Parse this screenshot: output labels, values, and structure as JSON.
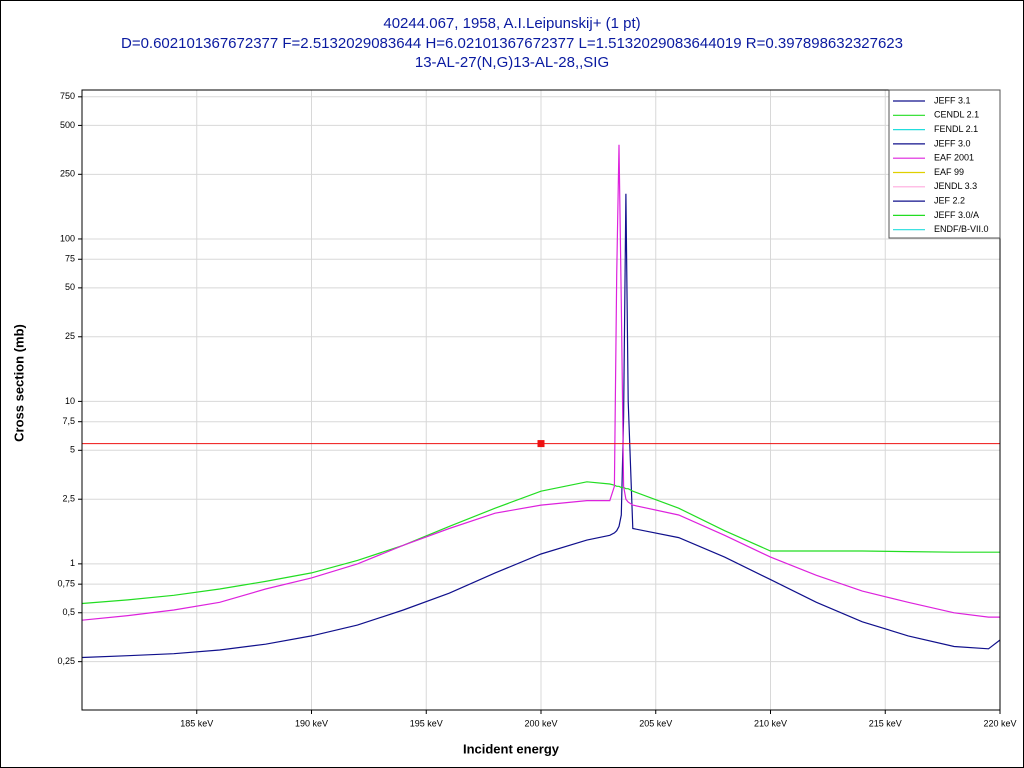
{
  "chart_data": {
    "type": "line",
    "title": [
      "40244.067, 1958, A.I.Leipunskij+ (1 pt)",
      "D=0.602101367672377 F=2.5132029083644 H=6.02101367672377 L=1.5132029083644019 R=0.397898632327623",
      "13-AL-27(N,G)13-AL-28,,SIG"
    ],
    "x_label": "Incident energy",
    "y_label": "Cross section (mb)",
    "y_scale": "log",
    "grid": true,
    "legend": "top-right",
    "xlim": [
      180,
      220
    ],
    "ylim": [
      0.126,
      826
    ],
    "xticks": [
      {
        "value": 185,
        "label": "185 keV"
      },
      {
        "value": 190,
        "label": "190 keV"
      },
      {
        "value": 195,
        "label": "195 keV"
      },
      {
        "value": 200,
        "label": "200 keV"
      },
      {
        "value": 205,
        "label": "205 keV"
      },
      {
        "value": 210,
        "label": "210 keV"
      },
      {
        "value": 215,
        "label": "215 keV"
      },
      {
        "value": 220,
        "label": "220 keV"
      }
    ],
    "yticks": [
      750,
      500,
      250,
      100,
      75,
      50,
      25,
      10,
      {
        "value": 7.5,
        "label": "7,5"
      },
      5,
      {
        "value": 2.5,
        "label": "2,5"
      },
      1,
      {
        "value": 0.75,
        "label": "0,75"
      },
      {
        "value": 0.5,
        "label": "0,5"
      },
      {
        "value": 0.25,
        "label": "0,25"
      }
    ],
    "x": [
      180,
      182,
      184,
      186,
      188,
      190,
      192,
      194,
      196,
      198,
      200,
      202,
      203,
      203.2,
      203.3,
      203.4,
      203.5,
      203.6,
      203.7,
      203.8,
      204,
      206,
      208,
      210,
      212,
      214,
      216,
      218,
      219.5,
      220
    ],
    "series": [
      {
        "name": "JEFF 3.1",
        "color": "#10108c",
        "values": [
          0.265,
          0.272,
          0.28,
          0.295,
          0.32,
          0.36,
          0.42,
          0.52,
          0.66,
          0.88,
          1.15,
          1.4,
          1.5,
          1.55,
          1.6,
          1.7,
          2,
          8,
          190,
          10,
          1.65,
          1.45,
          1.1,
          0.8,
          0.58,
          0.44,
          0.36,
          0.31,
          0.3,
          0.34
        ]
      },
      {
        "name": "CENDL 2.1",
        "color": "#22dd22",
        "values": [
          0.57,
          0.6,
          0.64,
          0.7,
          0.78,
          0.88,
          1.05,
          1.3,
          1.7,
          2.2,
          2.8,
          3.2,
          3.1,
          3.05,
          3.0,
          3.0,
          2.95,
          2.95,
          2.9,
          2.9,
          2.8,
          2.2,
          1.6,
          1.2,
          1.2,
          1.2,
          1.19,
          1.18,
          1.18,
          1.18
        ]
      },
      {
        "name": "FENDL 2.1",
        "color": "#22dddd",
        "values": [
          null,
          null,
          null,
          null,
          null,
          null,
          null,
          null,
          null,
          null,
          null,
          null,
          null,
          null,
          null,
          null,
          null,
          null,
          null,
          null,
          null,
          null,
          null,
          null,
          null,
          null,
          null,
          null,
          null,
          null
        ]
      },
      {
        "name": "JEFF 3.0",
        "color": "#10108c",
        "values": [
          null,
          null,
          null,
          null,
          null,
          null,
          null,
          null,
          null,
          null,
          null,
          null,
          null,
          null,
          null,
          null,
          null,
          null,
          null,
          null,
          null,
          null,
          null,
          null,
          null,
          null,
          null,
          null,
          null,
          null
        ]
      },
      {
        "name": "EAF 2001",
        "color": "#dd22dd",
        "values": [
          0.45,
          0.48,
          0.52,
          0.58,
          0.7,
          0.82,
          1,
          1.3,
          1.65,
          2.05,
          2.3,
          2.45,
          2.45,
          3,
          60,
          380,
          40,
          3,
          2.5,
          2.4,
          2.3,
          2,
          1.5,
          1.1,
          0.85,
          0.68,
          0.58,
          0.5,
          0.47,
          0.47
        ]
      },
      {
        "name": "EAF 99",
        "color": "#e0d000",
        "values": [
          null,
          null,
          null,
          null,
          null,
          null,
          null,
          null,
          null,
          null,
          null,
          null,
          null,
          null,
          null,
          null,
          null,
          null,
          null,
          null,
          null,
          null,
          null,
          null,
          null,
          null,
          null,
          null,
          null,
          null
        ]
      },
      {
        "name": "JENDL 3.3",
        "color": "#ffaadd",
        "values": [
          null,
          null,
          null,
          null,
          null,
          null,
          null,
          null,
          null,
          null,
          null,
          null,
          null,
          null,
          null,
          null,
          null,
          null,
          null,
          null,
          null,
          null,
          null,
          null,
          null,
          null,
          null,
          null,
          null,
          null
        ]
      },
      {
        "name": "JEF 2.2",
        "color": "#10108c",
        "values": [
          null,
          null,
          null,
          null,
          null,
          null,
          null,
          null,
          null,
          null,
          null,
          null,
          null,
          null,
          null,
          null,
          null,
          null,
          null,
          null,
          null,
          null,
          null,
          null,
          null,
          null,
          null,
          null,
          null,
          null
        ]
      },
      {
        "name": "JEFF 3.0/A",
        "color": "#22dd22",
        "values": [
          null,
          null,
          null,
          null,
          null,
          null,
          null,
          null,
          null,
          null,
          null,
          null,
          null,
          null,
          null,
          null,
          null,
          null,
          null,
          null,
          null,
          null,
          null,
          null,
          null,
          null,
          null,
          null,
          null,
          null
        ]
      },
      {
        "name": "ENDF/B-VII.0",
        "color": "#22dddd",
        "values": [
          null,
          null,
          null,
          null,
          null,
          null,
          null,
          null,
          null,
          null,
          null,
          null,
          null,
          null,
          null,
          null,
          null,
          null,
          null,
          null,
          null,
          null,
          null,
          null,
          null,
          null,
          null,
          null,
          null,
          null
        ]
      }
    ],
    "experiment": {
      "x": 200,
      "y": 5.5,
      "color": "#ee1111"
    }
  }
}
